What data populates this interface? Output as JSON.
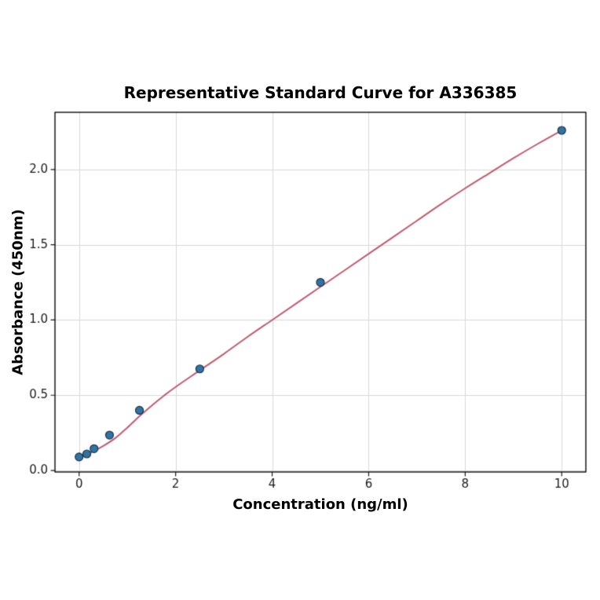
{
  "chart_data": {
    "type": "scatter",
    "title": "Representative Standard Curve for A336385",
    "xlabel": "Concentration (ng/ml)",
    "ylabel": "Absorbance (450nm)",
    "xlim": [
      -0.5,
      10.5
    ],
    "ylim": [
      -0.01,
      2.38
    ],
    "xticks": [
      0,
      2,
      4,
      6,
      8,
      10
    ],
    "xtick_labels": [
      "0",
      "2",
      "4",
      "6",
      "8",
      "10"
    ],
    "yticks": [
      0,
      0.5,
      1.0,
      1.5,
      2.0
    ],
    "ytick_labels": [
      "0.0",
      "0.5",
      "1.0",
      "1.5",
      "2.0"
    ],
    "grid": true,
    "legend": "none",
    "points": [
      [
        0,
        0.09
      ],
      [
        0.16,
        0.11
      ],
      [
        0.31,
        0.145
      ],
      [
        0.63,
        0.235
      ],
      [
        1.25,
        0.4
      ],
      [
        2.5,
        0.675
      ],
      [
        5,
        1.25
      ],
      [
        10,
        2.26
      ]
    ],
    "fit_curve": [
      [
        0,
        0.085
      ],
      [
        0.25,
        0.12
      ],
      [
        0.5,
        0.163
      ],
      [
        0.75,
        0.215
      ],
      [
        1.0,
        0.285
      ],
      [
        1.25,
        0.36
      ],
      [
        1.5,
        0.43
      ],
      [
        1.75,
        0.495
      ],
      [
        2.0,
        0.555
      ],
      [
        2.5,
        0.665
      ],
      [
        3.0,
        0.775
      ],
      [
        3.5,
        0.89
      ],
      [
        4.0,
        1.0
      ],
      [
        4.5,
        1.11
      ],
      [
        5.0,
        1.22
      ],
      [
        5.5,
        1.33
      ],
      [
        6.0,
        1.44
      ],
      [
        6.5,
        1.55
      ],
      [
        7.0,
        1.66
      ],
      [
        7.5,
        1.77
      ],
      [
        8.0,
        1.875
      ],
      [
        8.5,
        1.975
      ],
      [
        9.0,
        2.075
      ],
      [
        9.5,
        2.17
      ],
      [
        10.0,
        2.26
      ]
    ],
    "colors": {
      "background": "#ffffff",
      "grid": "#d9d9d9",
      "spine": "#1a1a1a",
      "text": "#1a1a1a",
      "curve": "#c25b70",
      "point_fill": "#3274a1",
      "point_edge": "#17334d"
    }
  }
}
